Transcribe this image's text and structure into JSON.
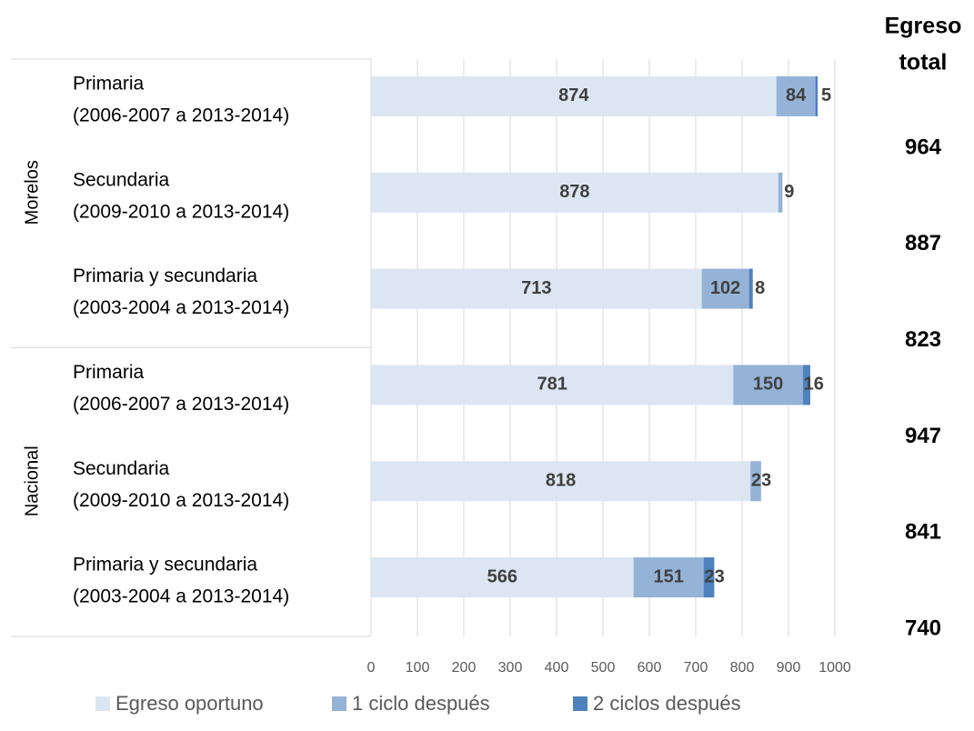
{
  "chart_data": {
    "type": "stacked_barh",
    "groups": [
      {
        "name": "Morelos",
        "rows": [
          0,
          1,
          2
        ]
      },
      {
        "name": "Nacional",
        "rows": [
          3,
          4,
          5
        ]
      }
    ],
    "categories": [
      [
        "Primaria",
        "(2006-2007 a 2013-2014)"
      ],
      [
        "Secundaria",
        "(2009-2010 a 2013-2014)"
      ],
      [
        "Primaria y secundaria",
        "(2003-2004 a 2013-2014)"
      ],
      [
        "Primaria",
        "(2006-2007 a 2013-2014)"
      ],
      [
        "Secundaria",
        "(2009-2010 a 2013-2014)"
      ],
      [
        "Primaria y secundaria",
        "(2003-2004 a 2013-2014)"
      ]
    ],
    "series": [
      {
        "name": "Egreso oportuno",
        "color": "#dce6f2",
        "values": [
          874,
          878,
          713,
          781,
          818,
          566
        ]
      },
      {
        "name": "1 ciclo después",
        "color": "#95b3d7",
        "values": [
          84,
          9,
          102,
          150,
          23,
          151
        ]
      },
      {
        "name": "2 ciclos después",
        "color": "#4f81bd",
        "values": [
          5,
          null,
          8,
          16,
          null,
          23
        ]
      }
    ],
    "total_header": [
      "Egreso",
      "total"
    ],
    "totals": [
      964,
      887,
      823,
      947,
      841,
      740
    ],
    "xlim": [
      0,
      1000
    ],
    "xticks": [
      0,
      100,
      200,
      300,
      400,
      500,
      600,
      700,
      800,
      900,
      1000
    ],
    "grid": true,
    "legend": "bottom"
  }
}
